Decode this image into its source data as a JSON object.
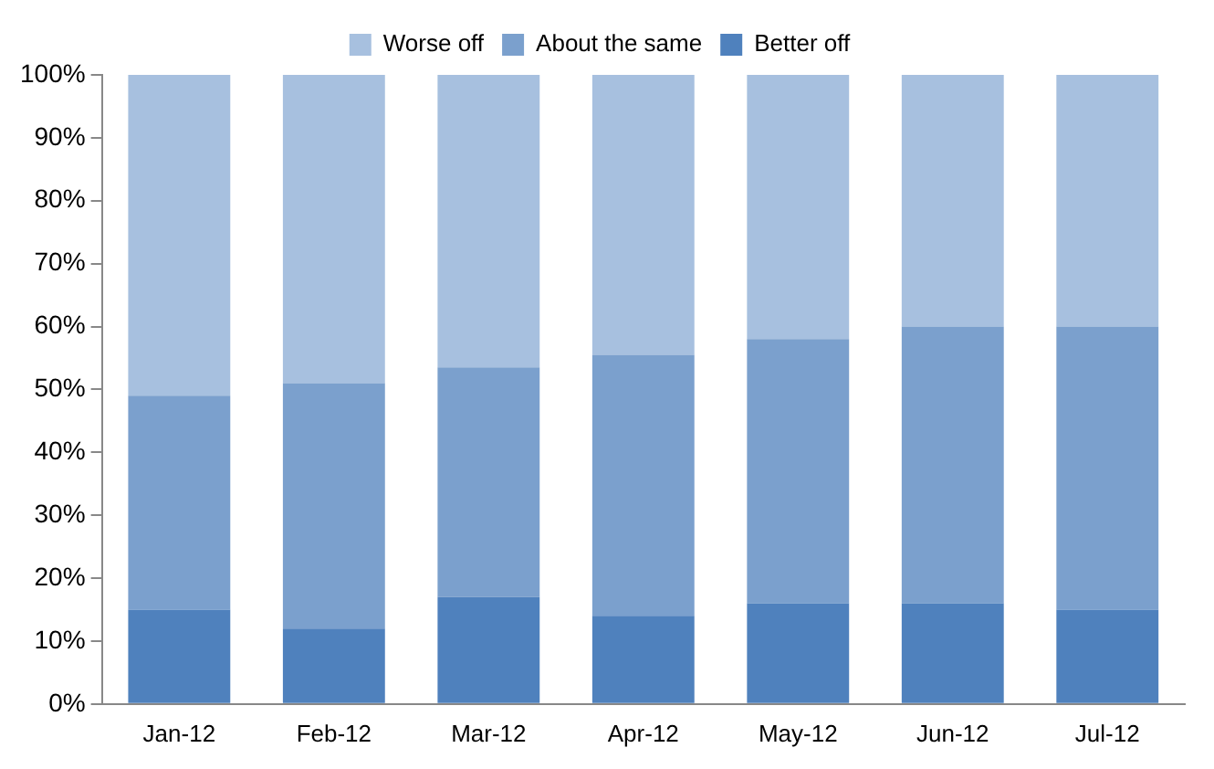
{
  "chart_data": {
    "type": "bar",
    "stacked": true,
    "categories": [
      "Jan-12",
      "Feb-12",
      "Mar-12",
      "Apr-12",
      "May-12",
      "Jun-12",
      "Jul-12"
    ],
    "series": [
      {
        "name": "Better off",
        "color": "#4f81bd",
        "values": [
          15,
          12,
          17,
          14,
          16,
          16,
          15
        ]
      },
      {
        "name": "About the same",
        "color": "#7ba0cd",
        "values": [
          34,
          39,
          36.5,
          41.5,
          42,
          44,
          45
        ]
      },
      {
        "name": "Worse off",
        "color": "#a7c0df",
        "values": [
          51,
          49,
          46.5,
          44.5,
          42,
          40,
          40
        ]
      }
    ],
    "ylim": [
      0,
      100
    ],
    "yticks": [
      {
        "value": 0,
        "label": "0%"
      },
      {
        "value": 10,
        "label": "10%"
      },
      {
        "value": 20,
        "label": "20%"
      },
      {
        "value": 30,
        "label": "30%"
      },
      {
        "value": 40,
        "label": "40%"
      },
      {
        "value": 50,
        "label": "50%"
      },
      {
        "value": 60,
        "label": "60%"
      },
      {
        "value": 70,
        "label": "70%"
      },
      {
        "value": 80,
        "label": "80%"
      },
      {
        "value": 90,
        "label": "90%"
      },
      {
        "value": 100,
        "label": "100%"
      }
    ],
    "grid": false,
    "legend": "top"
  }
}
